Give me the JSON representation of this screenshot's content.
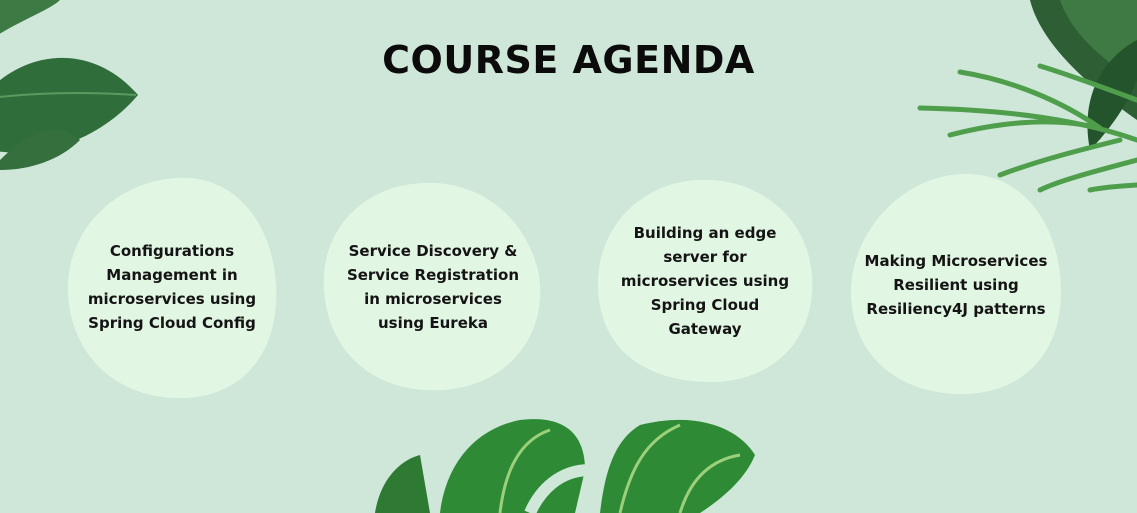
{
  "title": "COURSE AGENDA",
  "colors": {
    "background": "#cee7d8",
    "card": "#e2f6e4",
    "leaf_dark": "#2f6e3a",
    "leaf_light": "#4f9e4c",
    "text": "#141414"
  },
  "agenda": [
    {
      "label": "Configurations Management in microservices using Spring Cloud Config"
    },
    {
      "label": "Service Discovery & Service Registration in microservices using Eureka"
    },
    {
      "label": "Building an edge server for microservices using Spring Cloud Gateway"
    },
    {
      "label": "Making Microservices Resilient using Resiliency4J patterns"
    }
  ]
}
